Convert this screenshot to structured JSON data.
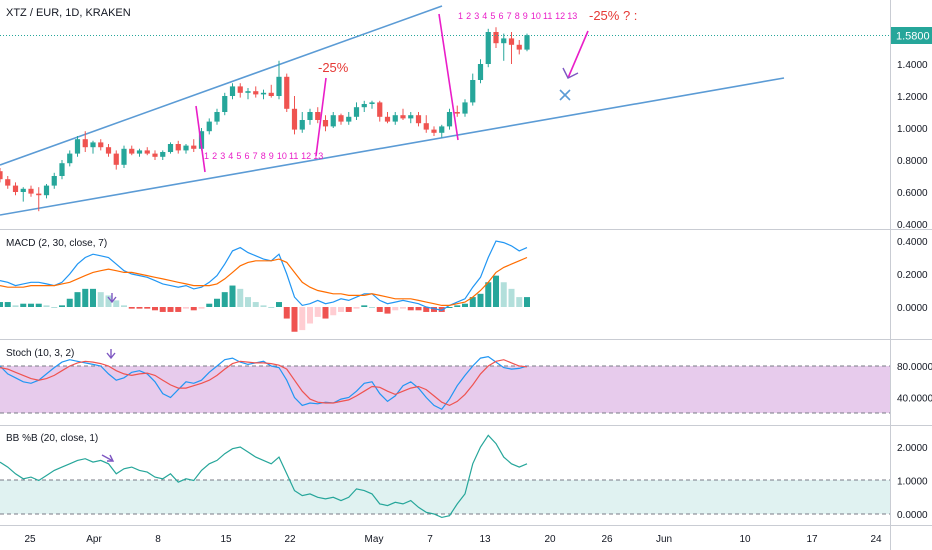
{
  "header": {
    "title": "XTZ / EUR, 1D, KRAKEN"
  },
  "price_tag": {
    "label": "1.5800",
    "color": "#26a69a"
  },
  "colors": {
    "up": "#26a69a",
    "down": "#ef5350",
    "up_light": "#b2dfdb",
    "down_light": "#ffcdd2",
    "trendline": "#5b9bd5",
    "annotation_magenta": "#e91ec8",
    "annotation_red": "#e53935",
    "macd_line": "#2196f3",
    "signal_line": "#ff6d00",
    "stoch_k": "#2196f3",
    "stoch_d": "#ef5350",
    "stoch_band": "#e1bee7",
    "bb_line": "#26a69a",
    "bb_band": "#e0f2f1",
    "arrow_icon": "#7e57c2"
  },
  "annotations": {
    "drop_label_1": "-25%",
    "drop_label_2": "-25% ? :",
    "count_1": [
      "1",
      "2",
      "3",
      "4",
      "5",
      "6",
      "7",
      "8",
      "9",
      "10",
      "11",
      "12",
      "13"
    ],
    "count_2": [
      "1",
      "2",
      "3",
      "4",
      "5",
      "6",
      "7",
      "8",
      "9",
      "10",
      "11",
      "12",
      "13"
    ],
    "cross_icon": "x-icon",
    "arrow_icons": [
      "down-arrow-icon",
      "down-arrow-icon",
      "right-arrow-icon"
    ]
  },
  "panes": {
    "macd": {
      "label": "MACD (2, 30, close, 7)"
    },
    "stoch": {
      "label": "Stoch (10, 3, 2)"
    },
    "bb": {
      "label": "BB %B (20, close, 1)"
    }
  },
  "chart_data": [
    {
      "type": "candlestick",
      "title": "XTZ / EUR, 1D, KRAKEN",
      "ylim": [
        0.4,
        1.75
      ],
      "yticks": [
        "1.4000",
        "1.2000",
        "1.0000",
        "0.8000",
        "0.6000",
        "0.4000"
      ],
      "xticks": [
        "25",
        "Apr",
        "8",
        "15",
        "22",
        "May",
        "7",
        "13",
        "20",
        "26",
        "Jun",
        "10",
        "17",
        "24"
      ],
      "candles": [
        {
          "o": 0.73,
          "h": 0.75,
          "l": 0.66,
          "c": 0.68
        },
        {
          "o": 0.68,
          "h": 0.7,
          "l": 0.62,
          "c": 0.64
        },
        {
          "o": 0.64,
          "h": 0.66,
          "l": 0.58,
          "c": 0.6
        },
        {
          "o": 0.6,
          "h": 0.63,
          "l": 0.54,
          "c": 0.62
        },
        {
          "o": 0.62,
          "h": 0.64,
          "l": 0.57,
          "c": 0.59
        },
        {
          "o": 0.59,
          "h": 0.63,
          "l": 0.48,
          "c": 0.58
        },
        {
          "o": 0.58,
          "h": 0.65,
          "l": 0.56,
          "c": 0.64
        },
        {
          "o": 0.64,
          "h": 0.72,
          "l": 0.62,
          "c": 0.7
        },
        {
          "o": 0.7,
          "h": 0.8,
          "l": 0.68,
          "c": 0.78
        },
        {
          "o": 0.78,
          "h": 0.86,
          "l": 0.76,
          "c": 0.84
        },
        {
          "o": 0.84,
          "h": 0.95,
          "l": 0.82,
          "c": 0.93
        },
        {
          "o": 0.93,
          "h": 0.98,
          "l": 0.85,
          "c": 0.88
        },
        {
          "o": 0.88,
          "h": 0.92,
          "l": 0.84,
          "c": 0.91
        },
        {
          "o": 0.91,
          "h": 0.93,
          "l": 0.86,
          "c": 0.88
        },
        {
          "o": 0.88,
          "h": 0.9,
          "l": 0.82,
          "c": 0.84
        },
        {
          "o": 0.84,
          "h": 0.86,
          "l": 0.74,
          "c": 0.77
        },
        {
          "o": 0.77,
          "h": 0.89,
          "l": 0.75,
          "c": 0.87
        },
        {
          "o": 0.87,
          "h": 0.89,
          "l": 0.83,
          "c": 0.84
        },
        {
          "o": 0.84,
          "h": 0.87,
          "l": 0.82,
          "c": 0.86
        },
        {
          "o": 0.86,
          "h": 0.88,
          "l": 0.83,
          "c": 0.84
        },
        {
          "o": 0.84,
          "h": 0.86,
          "l": 0.8,
          "c": 0.82
        },
        {
          "o": 0.82,
          "h": 0.86,
          "l": 0.8,
          "c": 0.85
        },
        {
          "o": 0.85,
          "h": 0.91,
          "l": 0.84,
          "c": 0.9
        },
        {
          "o": 0.9,
          "h": 0.92,
          "l": 0.84,
          "c": 0.86
        },
        {
          "o": 0.86,
          "h": 0.9,
          "l": 0.84,
          "c": 0.89
        },
        {
          "o": 0.89,
          "h": 0.93,
          "l": 0.85,
          "c": 0.87
        },
        {
          "o": 0.87,
          "h": 1.0,
          "l": 0.86,
          "c": 0.98
        },
        {
          "o": 0.98,
          "h": 1.06,
          "l": 0.96,
          "c": 1.04
        },
        {
          "o": 1.04,
          "h": 1.12,
          "l": 1.02,
          "c": 1.1
        },
        {
          "o": 1.1,
          "h": 1.22,
          "l": 1.08,
          "c": 1.2
        },
        {
          "o": 1.2,
          "h": 1.28,
          "l": 1.18,
          "c": 1.26
        },
        {
          "o": 1.26,
          "h": 1.28,
          "l": 1.19,
          "c": 1.22
        },
        {
          "o": 1.22,
          "h": 1.25,
          "l": 1.18,
          "c": 1.23
        },
        {
          "o": 1.23,
          "h": 1.26,
          "l": 1.19,
          "c": 1.21
        },
        {
          "o": 1.21,
          "h": 1.24,
          "l": 1.18,
          "c": 1.22
        },
        {
          "o": 1.22,
          "h": 1.27,
          "l": 1.19,
          "c": 1.2
        },
        {
          "o": 1.2,
          "h": 1.42,
          "l": 1.18,
          "c": 1.32
        },
        {
          "o": 1.32,
          "h": 1.34,
          "l": 1.1,
          "c": 1.12
        },
        {
          "o": 1.12,
          "h": 1.2,
          "l": 0.96,
          "c": 0.99
        },
        {
          "o": 0.99,
          "h": 1.1,
          "l": 0.97,
          "c": 1.05
        },
        {
          "o": 1.05,
          "h": 1.12,
          "l": 1.02,
          "c": 1.1
        },
        {
          "o": 1.1,
          "h": 1.13,
          "l": 1.03,
          "c": 1.05
        },
        {
          "o": 1.05,
          "h": 1.08,
          "l": 0.98,
          "c": 1.01
        },
        {
          "o": 1.01,
          "h": 1.1,
          "l": 1.0,
          "c": 1.08
        },
        {
          "o": 1.08,
          "h": 1.09,
          "l": 1.02,
          "c": 1.04
        },
        {
          "o": 1.04,
          "h": 1.1,
          "l": 1.02,
          "c": 1.07
        },
        {
          "o": 1.07,
          "h": 1.16,
          "l": 1.05,
          "c": 1.13
        },
        {
          "o": 1.13,
          "h": 1.17,
          "l": 1.1,
          "c": 1.15
        },
        {
          "o": 1.15,
          "h": 1.17,
          "l": 1.12,
          "c": 1.16
        },
        {
          "o": 1.16,
          "h": 1.17,
          "l": 1.04,
          "c": 1.07
        },
        {
          "o": 1.07,
          "h": 1.1,
          "l": 1.03,
          "c": 1.04
        },
        {
          "o": 1.04,
          "h": 1.1,
          "l": 1.02,
          "c": 1.08
        },
        {
          "o": 1.08,
          "h": 1.12,
          "l": 1.05,
          "c": 1.06
        },
        {
          "o": 1.06,
          "h": 1.1,
          "l": 1.03,
          "c": 1.08
        },
        {
          "o": 1.08,
          "h": 1.1,
          "l": 1.01,
          "c": 1.03
        },
        {
          "o": 1.03,
          "h": 1.08,
          "l": 0.97,
          "c": 0.99
        },
        {
          "o": 0.99,
          "h": 1.01,
          "l": 0.95,
          "c": 0.97
        },
        {
          "o": 0.97,
          "h": 1.02,
          "l": 0.94,
          "c": 1.01
        },
        {
          "o": 1.01,
          "h": 1.12,
          "l": 0.99,
          "c": 1.1
        },
        {
          "o": 1.1,
          "h": 1.14,
          "l": 1.07,
          "c": 1.09
        },
        {
          "o": 1.09,
          "h": 1.18,
          "l": 1.07,
          "c": 1.16
        },
        {
          "o": 1.16,
          "h": 1.34,
          "l": 1.14,
          "c": 1.3
        },
        {
          "o": 1.3,
          "h": 1.43,
          "l": 1.28,
          "c": 1.4
        },
        {
          "o": 1.4,
          "h": 1.62,
          "l": 1.38,
          "c": 1.6
        },
        {
          "o": 1.6,
          "h": 1.63,
          "l": 1.5,
          "c": 1.53
        },
        {
          "o": 1.53,
          "h": 1.59,
          "l": 1.42,
          "c": 1.56
        },
        {
          "o": 1.56,
          "h": 1.6,
          "l": 1.4,
          "c": 1.52
        },
        {
          "o": 1.52,
          "h": 1.55,
          "l": 1.46,
          "c": 1.49
        },
        {
          "o": 1.49,
          "h": 1.59,
          "l": 1.48,
          "c": 1.58
        }
      ]
    },
    {
      "type": "line",
      "title": "MACD (2, 30, close, 7)",
      "ylim": [
        -0.15,
        0.45
      ],
      "yticks": [
        "0.4000",
        "0.2000",
        "0.0000"
      ],
      "series": [
        {
          "values": [
            0.16,
            0.15,
            0.13,
            0.14,
            0.15,
            0.15,
            0.14,
            0.13,
            0.15,
            0.2,
            0.26,
            0.3,
            0.32,
            0.31,
            0.3,
            0.26,
            0.22,
            0.2,
            0.19,
            0.18,
            0.16,
            0.14,
            0.13,
            0.12,
            0.13,
            0.11,
            0.12,
            0.15,
            0.19,
            0.26,
            0.34,
            0.36,
            0.33,
            0.31,
            0.29,
            0.28,
            0.32,
            0.2,
            0.06,
            0.01,
            0.02,
            0.04,
            0.02,
            0.03,
            0.05,
            0.04,
            0.06,
            0.08,
            0.08,
            0.04,
            0.02,
            0.03,
            0.04,
            0.03,
            0.02,
            0.0,
            -0.01,
            -0.02,
            0.01,
            0.03,
            0.05,
            0.12,
            0.18,
            0.3,
            0.4,
            0.39,
            0.37,
            0.34,
            0.36
          ]
        },
        {
          "values": [
            0.13,
            0.12,
            0.12,
            0.12,
            0.13,
            0.13,
            0.13,
            0.13,
            0.14,
            0.15,
            0.17,
            0.19,
            0.21,
            0.22,
            0.23,
            0.22,
            0.21,
            0.21,
            0.2,
            0.19,
            0.18,
            0.17,
            0.16,
            0.15,
            0.14,
            0.13,
            0.13,
            0.13,
            0.14,
            0.17,
            0.21,
            0.25,
            0.27,
            0.28,
            0.28,
            0.28,
            0.29,
            0.27,
            0.21,
            0.15,
            0.12,
            0.1,
            0.09,
            0.08,
            0.08,
            0.07,
            0.07,
            0.07,
            0.08,
            0.07,
            0.06,
            0.05,
            0.05,
            0.05,
            0.04,
            0.03,
            0.02,
            0.01,
            0.01,
            0.02,
            0.03,
            0.06,
            0.1,
            0.15,
            0.21,
            0.24,
            0.26,
            0.28,
            0.3
          ]
        }
      ],
      "histogram": [
        0.03,
        0.03,
        0.01,
        0.02,
        0.02,
        0.02,
        0.01,
        0.0,
        0.01,
        0.05,
        0.09,
        0.11,
        0.11,
        0.09,
        0.07,
        0.04,
        0.01,
        -0.01,
        -0.01,
        -0.01,
        -0.02,
        -0.03,
        -0.03,
        -0.03,
        -0.01,
        -0.02,
        -0.01,
        0.02,
        0.05,
        0.09,
        0.13,
        0.11,
        0.06,
        0.03,
        0.01,
        0.0,
        0.03,
        -0.07,
        -0.15,
        -0.14,
        -0.1,
        -0.06,
        -0.07,
        -0.05,
        -0.03,
        -0.03,
        -0.01,
        0.01,
        0.0,
        -0.03,
        -0.04,
        -0.02,
        -0.01,
        -0.02,
        -0.02,
        -0.03,
        -0.03,
        -0.03,
        0.0,
        0.01,
        0.02,
        0.06,
        0.08,
        0.15,
        0.19,
        0.15,
        0.11,
        0.06,
        0.06
      ]
    },
    {
      "type": "line",
      "title": "Stoch (10, 3, 2)",
      "ylim": [
        15,
        105
      ],
      "yticks": [
        "80.0000",
        "40.0000"
      ],
      "band": [
        20,
        80
      ],
      "series": [
        {
          "values": [
            80,
            70,
            65,
            60,
            58,
            62,
            70,
            78,
            85,
            88,
            86,
            84,
            82,
            80,
            70,
            62,
            65,
            72,
            74,
            70,
            60,
            45,
            40,
            50,
            60,
            58,
            62,
            72,
            80,
            88,
            90,
            85,
            82,
            84,
            86,
            80,
            78,
            62,
            40,
            30,
            33,
            32,
            34,
            33,
            38,
            40,
            48,
            58,
            60,
            45,
            35,
            42,
            55,
            60,
            52,
            40,
            30,
            25,
            38,
            55,
            68,
            80,
            90,
            92,
            85,
            78,
            76,
            77,
            80
          ]
        },
        {
          "values": [
            78,
            76,
            72,
            68,
            64,
            62,
            64,
            68,
            74,
            80,
            84,
            86,
            85,
            83,
            80,
            74,
            70,
            68,
            70,
            71,
            68,
            62,
            56,
            52,
            52,
            55,
            58,
            62,
            68,
            76,
            83,
            86,
            85,
            84,
            84,
            83,
            81,
            76,
            62,
            48,
            38,
            34,
            33,
            33,
            35,
            37,
            42,
            48,
            54,
            53,
            48,
            44,
            48,
            52,
            54,
            50,
            42,
            34,
            30,
            35,
            44,
            56,
            70,
            80,
            86,
            88,
            84,
            80,
            79
          ]
        }
      ]
    },
    {
      "type": "line",
      "title": "BB %B (20, close, 1)",
      "ylim": [
        -0.3,
        2.6
      ],
      "yticks": [
        "2.0000",
        "1.0000",
        "0.0000"
      ],
      "band": [
        0,
        1
      ],
      "series": [
        {
          "values": [
            1.55,
            1.4,
            1.2,
            1.05,
            1.1,
            1.0,
            1.15,
            1.3,
            1.4,
            1.5,
            1.6,
            1.65,
            1.55,
            1.6,
            1.5,
            1.2,
            1.35,
            1.4,
            1.3,
            1.25,
            1.1,
            1.05,
            1.2,
            0.95,
            1.05,
            1.0,
            1.3,
            1.5,
            1.6,
            1.8,
            1.95,
            2.0,
            1.85,
            1.7,
            1.6,
            1.5,
            1.7,
            1.2,
            0.7,
            0.55,
            0.6,
            0.5,
            0.45,
            0.5,
            0.4,
            0.5,
            0.75,
            0.7,
            0.6,
            0.3,
            0.25,
            0.35,
            0.3,
            0.4,
            0.2,
            0.05,
            0.0,
            -0.1,
            -0.05,
            0.3,
            0.6,
            1.5,
            2.0,
            2.35,
            2.1,
            1.7,
            1.5,
            1.4,
            1.5
          ]
        }
      ]
    }
  ]
}
